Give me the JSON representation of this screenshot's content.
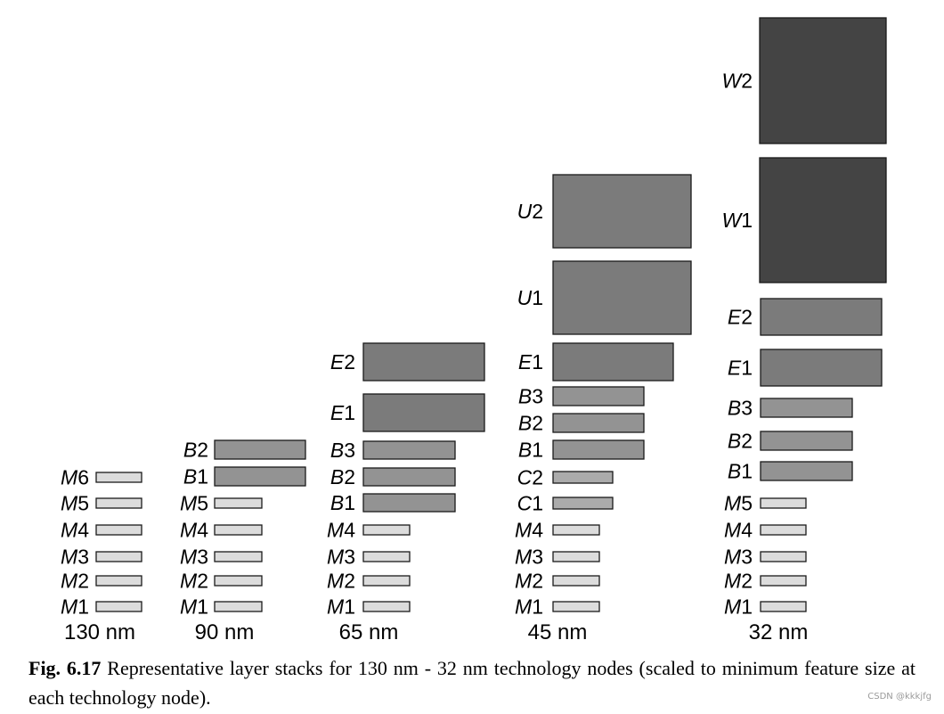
{
  "colors": {
    "M": "#dcdcdc",
    "C": "#ababab",
    "B": "#939393",
    "E": "#7b7b7b",
    "U": "#7b7b7b",
    "W": "#444444",
    "stroke": "#1a1a1a"
  },
  "stacks": [
    {
      "node": "130 nm",
      "layers": [
        {
          "letter": "M",
          "num": "1"
        },
        {
          "letter": "M",
          "num": "2"
        },
        {
          "letter": "M",
          "num": "3"
        },
        {
          "letter": "M",
          "num": "4"
        },
        {
          "letter": "M",
          "num": "5"
        },
        {
          "letter": "M",
          "num": "6"
        }
      ]
    },
    {
      "node": "90 nm",
      "layers": [
        {
          "letter": "M",
          "num": "1"
        },
        {
          "letter": "M",
          "num": "2"
        },
        {
          "letter": "M",
          "num": "3"
        },
        {
          "letter": "M",
          "num": "4"
        },
        {
          "letter": "M",
          "num": "5"
        },
        {
          "letter": "B",
          "num": "1"
        },
        {
          "letter": "B",
          "num": "2"
        }
      ]
    },
    {
      "node": "65 nm",
      "layers": [
        {
          "letter": "M",
          "num": "1"
        },
        {
          "letter": "M",
          "num": "2"
        },
        {
          "letter": "M",
          "num": "3"
        },
        {
          "letter": "M",
          "num": "4"
        },
        {
          "letter": "B",
          "num": "1"
        },
        {
          "letter": "B",
          "num": "2"
        },
        {
          "letter": "B",
          "num": "3"
        },
        {
          "letter": "E",
          "num": "1"
        },
        {
          "letter": "E",
          "num": "2"
        }
      ]
    },
    {
      "node": "45 nm",
      "layers": [
        {
          "letter": "M",
          "num": "1"
        },
        {
          "letter": "M",
          "num": "2"
        },
        {
          "letter": "M",
          "num": "3"
        },
        {
          "letter": "M",
          "num": "4"
        },
        {
          "letter": "C",
          "num": "1"
        },
        {
          "letter": "C",
          "num": "2"
        },
        {
          "letter": "B",
          "num": "1"
        },
        {
          "letter": "B",
          "num": "2"
        },
        {
          "letter": "B",
          "num": "3"
        },
        {
          "letter": "E",
          "num": "1"
        },
        {
          "letter": "U",
          "num": "1"
        },
        {
          "letter": "U",
          "num": "2"
        }
      ]
    },
    {
      "node": "32 nm",
      "layers": [
        {
          "letter": "M",
          "num": "1"
        },
        {
          "letter": "M",
          "num": "2"
        },
        {
          "letter": "M",
          "num": "3"
        },
        {
          "letter": "M",
          "num": "4"
        },
        {
          "letter": "M",
          "num": "5"
        },
        {
          "letter": "B",
          "num": "1"
        },
        {
          "letter": "B",
          "num": "2"
        },
        {
          "letter": "B",
          "num": "3"
        },
        {
          "letter": "E",
          "num": "1"
        },
        {
          "letter": "E",
          "num": "2"
        },
        {
          "letter": "W",
          "num": "1"
        },
        {
          "letter": "W",
          "num": "2"
        }
      ]
    }
  ],
  "caption": {
    "label": "Fig. 6.17",
    "text": " Representative layer stacks for 130 nm - 32 nm technology nodes (scaled to minimum feature size at each technology node)."
  },
  "watermark": "CSDN @kkkjfg"
}
